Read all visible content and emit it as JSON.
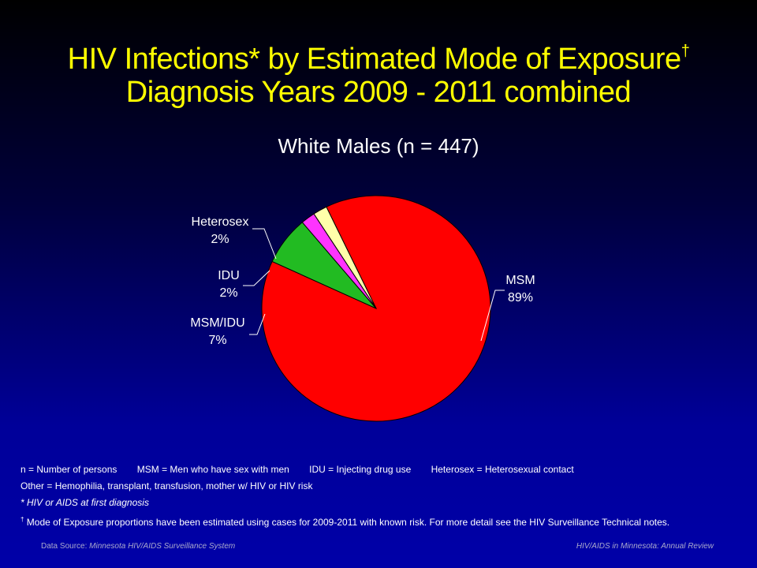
{
  "title": {
    "line1": "HIV Infections* by Estimated Mode of Exposure",
    "line1_mark": "†",
    "line2": "Diagnosis Years 2009 - 2011 combined"
  },
  "chart_data": {
    "type": "pie",
    "title": "White Males (n = 447)",
    "slices": [
      {
        "label": "MSM",
        "value": 89,
        "display": "89%",
        "color": "#ff0000"
      },
      {
        "label": "MSM/IDU",
        "value": 7,
        "display": "7%",
        "color": "#22bb22"
      },
      {
        "label": "IDU",
        "value": 2,
        "display": "2%",
        "color": "#ff33ff"
      },
      {
        "label": "Heterosex",
        "value": 2,
        "display": "2%",
        "color": "#ffffaa"
      }
    ]
  },
  "footnotes": {
    "defs": [
      "n = Number of persons",
      "MSM = Men who have sex with men",
      "IDU = Injecting drug use",
      "Heterosex = Heterosexual contact"
    ],
    "other": "Other = Hemophilia, transplant, transfusion, mother w/ HIV or HIV risk",
    "asterisk": "* HIV or AIDS at first diagnosis",
    "dagger_mark": "†",
    "dagger": " Mode of Exposure proportions have been estimated using cases for 2009-2011  with known risk. For more detail see the HIV Surveillance Technical notes."
  },
  "footer": {
    "source_label": "Data Source: ",
    "source_value": "Minnesota HIV/AIDS Surveillance  System",
    "right": "HIV/AIDS in Minnesota: Annual Review"
  }
}
